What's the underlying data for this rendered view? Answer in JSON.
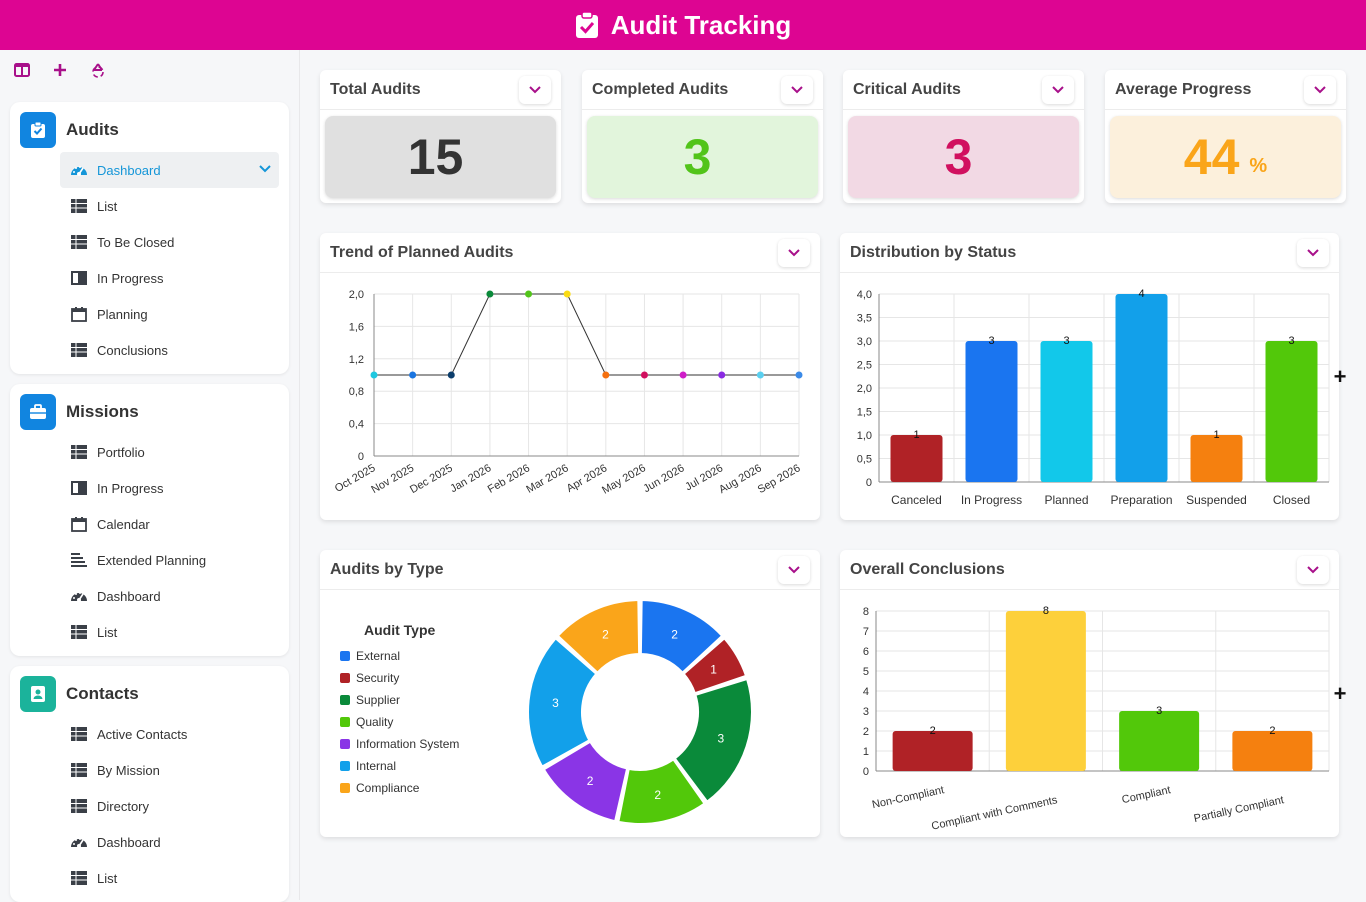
{
  "header": {
    "title": "Audit Tracking"
  },
  "sidebar": {
    "toolbar": {
      "icons": [
        "columns-icon",
        "plus-icon",
        "recycle-icon"
      ]
    },
    "groups": [
      {
        "title": "Audits",
        "color": "#1185e0",
        "items": [
          {
            "label": "Dashboard",
            "icon": "dashboard-icon",
            "active": true
          },
          {
            "label": "List",
            "icon": "table-icon"
          },
          {
            "label": "To Be Closed",
            "icon": "table-icon"
          },
          {
            "label": "In Progress",
            "icon": "book-icon"
          },
          {
            "label": "Planning",
            "icon": "calendar-icon"
          },
          {
            "label": "Conclusions",
            "icon": "table-icon"
          }
        ]
      },
      {
        "title": "Missions",
        "color": "#1185e0",
        "items": [
          {
            "label": "Portfolio",
            "icon": "table-icon"
          },
          {
            "label": "In Progress",
            "icon": "book-icon"
          },
          {
            "label": "Calendar",
            "icon": "calendar-icon"
          },
          {
            "label": "Extended Planning",
            "icon": "gantt-icon"
          },
          {
            "label": "Dashboard",
            "icon": "dashboard-icon"
          },
          {
            "label": "List",
            "icon": "table-icon"
          }
        ]
      },
      {
        "title": "Contacts",
        "color": "#1bb39b",
        "items": [
          {
            "label": "Active Contacts",
            "icon": "table-icon"
          },
          {
            "label": "By Mission",
            "icon": "table-icon"
          },
          {
            "label": "Directory",
            "icon": "table-icon"
          },
          {
            "label": "Dashboard",
            "icon": "dashboard-icon"
          },
          {
            "label": "List",
            "icon": "table-icon"
          }
        ]
      }
    ]
  },
  "kpis": [
    {
      "title": "Total Audits",
      "value": "15",
      "unit": "",
      "bg": "#e0e0e0",
      "fg": "#333333"
    },
    {
      "title": "Completed Audits",
      "value": "3",
      "unit": "",
      "bg": "#e2f5dc",
      "fg": "#52c41a"
    },
    {
      "title": "Critical Audits",
      "value": "3",
      "unit": "",
      "bg": "#f2d9e4",
      "fg": "#d1105f"
    },
    {
      "title": "Average Progress",
      "value": "44",
      "unit": "%",
      "bg": "#fcf0dc",
      "fg": "#faa51a"
    }
  ],
  "cards": {
    "trend": {
      "title": "Trend of Planned Audits"
    },
    "status": {
      "title": "Distribution by Status"
    },
    "type": {
      "title": "Audits by Type"
    },
    "conclusions": {
      "title": "Overall Conclusions"
    }
  },
  "chart_data": [
    {
      "type": "line",
      "title": "Trend of Planned Audits",
      "categories": [
        "Oct 2025",
        "Nov 2025",
        "Dec 2025",
        "Jan 2026",
        "Feb 2026",
        "Mar 2026",
        "Apr 2026",
        "May 2026",
        "Jun 2026",
        "Jul 2026",
        "Aug 2026",
        "Sep 2026"
      ],
      "values": [
        1,
        1,
        1,
        2,
        2,
        2,
        1,
        1,
        1,
        1,
        1,
        1
      ],
      "point_colors": [
        "#1ec8e0",
        "#1a75e0",
        "#0b3d6b",
        "#0a8a3a",
        "#52c41a",
        "#fadb14",
        "#f5700f",
        "#d1105f",
        "#cf1ec8",
        "#8a2be2",
        "#5ad0f0",
        "#3a8ae8"
      ],
      "yticks": [
        "2,0",
        "1,6",
        "1,2",
        "0,8",
        "0,4",
        "0"
      ],
      "ylim": [
        0,
        2
      ],
      "grid": true
    },
    {
      "type": "bar",
      "title": "Distribution by Status",
      "categories": [
        "Canceled",
        "In Progress",
        "Planned",
        "Preparation",
        "Suspended",
        "Closed"
      ],
      "values": [
        1,
        3,
        3,
        4,
        1,
        3
      ],
      "colors": [
        "#b02226",
        "#1a75f0",
        "#12c8ea",
        "#12a0ea",
        "#f5800f",
        "#52c80a"
      ],
      "yticks": [
        "4,0",
        "3,5",
        "3,0",
        "2,5",
        "2,0",
        "1,5",
        "1,0",
        "0,5",
        "0"
      ],
      "ylim": [
        0,
        4
      ],
      "grid": true
    },
    {
      "type": "pie",
      "title": "Audits by Type",
      "legend_title": "Audit Type",
      "legend_position": "left",
      "labels": [
        "External",
        "Security",
        "Supplier",
        "Quality",
        "Information System",
        "Internal",
        "Compliance"
      ],
      "values": [
        2,
        1,
        3,
        2,
        2,
        3,
        2
      ],
      "colors": [
        "#1a75f0",
        "#b02226",
        "#0a8a3a",
        "#52c80a",
        "#8a35e6",
        "#12a0ea",
        "#faa51a"
      ]
    },
    {
      "type": "bar",
      "title": "Overall Conclusions",
      "categories": [
        "Non-Compliant",
        "Compliant with Comments",
        "Compliant",
        "Partially Compliant"
      ],
      "values": [
        2,
        8,
        3,
        2
      ],
      "colors": [
        "#b02226",
        "#fdd03b",
        "#52c80a",
        "#f5800f"
      ],
      "yticks": [
        "8",
        "7",
        "6",
        "5",
        "4",
        "3",
        "2",
        "1",
        "0"
      ],
      "ylim": [
        0,
        8
      ],
      "grid": true
    }
  ]
}
